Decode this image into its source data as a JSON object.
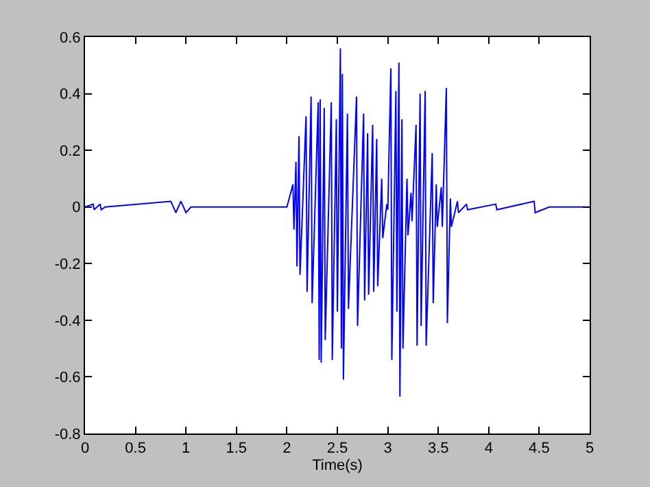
{
  "chart_data": {
    "type": "line",
    "xlabel": "Time(s)",
    "x": [
      0,
      0.08,
      0.09,
      0.15,
      0.16,
      0.2,
      0.85,
      0.9,
      0.95,
      1.0,
      1.05,
      2.0,
      2.06,
      2.07,
      2.09,
      2.1,
      2.12,
      2.13,
      2.19,
      2.2,
      2.24,
      2.25,
      2.31,
      2.32,
      2.33,
      2.34,
      2.37,
      2.38,
      2.44,
      2.45,
      2.49,
      2.5,
      2.53,
      2.54,
      2.55,
      2.56,
      2.6,
      2.61,
      2.69,
      2.7,
      2.76,
      2.77,
      2.8,
      2.81,
      2.85,
      2.86,
      2.89,
      2.9,
      2.94,
      2.95,
      2.99,
      3.0,
      3.03,
      3.04,
      3.08,
      3.09,
      3.11,
      3.12,
      3.14,
      3.15,
      3.19,
      3.2,
      3.23,
      3.24,
      3.28,
      3.29,
      3.32,
      3.33,
      3.37,
      3.38,
      3.44,
      3.45,
      3.48,
      3.49,
      3.53,
      3.54,
      3.58,
      3.59,
      3.62,
      3.63,
      3.69,
      3.7,
      3.78,
      3.79,
      4.07,
      4.08,
      4.45,
      4.46,
      4.6,
      5
    ],
    "series": [
      {
        "color": "#0000ff",
        "values": [
          0,
          0.01,
          -0.01,
          0.01,
          -0.01,
          0,
          0.02,
          -0.02,
          0.02,
          -0.02,
          0,
          0,
          0.08,
          -0.08,
          0.16,
          -0.21,
          0.25,
          -0.24,
          0.32,
          -0.3,
          0.39,
          -0.34,
          0.37,
          -0.54,
          0.38,
          -0.55,
          0.35,
          -0.47,
          0.37,
          -0.54,
          0.31,
          -0.37,
          0.56,
          -0.5,
          0.47,
          -0.61,
          0.33,
          -0.36,
          0.39,
          -0.42,
          0.33,
          -0.33,
          0.26,
          -0.31,
          0.29,
          -0.3,
          0.24,
          -0.28,
          0.1,
          -0.11,
          0.01,
          -0.01,
          0.49,
          -0.54,
          0.41,
          -0.37,
          0.51,
          -0.67,
          0.31,
          -0.5,
          0.1,
          -0.1,
          0.05,
          -0.05,
          0.29,
          -0.49,
          0.4,
          -0.42,
          0.41,
          -0.49,
          0.19,
          -0.34,
          0.08,
          -0.07,
          0.07,
          -0.07,
          0.42,
          -0.41,
          0.03,
          -0.07,
          0.02,
          -0.02,
          0.01,
          -0.01,
          0.01,
          -0.01,
          0.02,
          -0.02,
          0,
          0
        ]
      }
    ],
    "xlim": [
      0,
      5
    ],
    "xticks": [
      0,
      0.5,
      1,
      1.5,
      2,
      2.5,
      3,
      3.5,
      4,
      4.5,
      5
    ],
    "ylim": [
      -0.8,
      0.6
    ],
    "yticks": [
      -0.8,
      -0.6,
      -0.4,
      -0.2,
      0,
      0.2,
      0.4,
      0.6
    ],
    "grid": false,
    "marker": "none",
    "line_style": "solid"
  }
}
